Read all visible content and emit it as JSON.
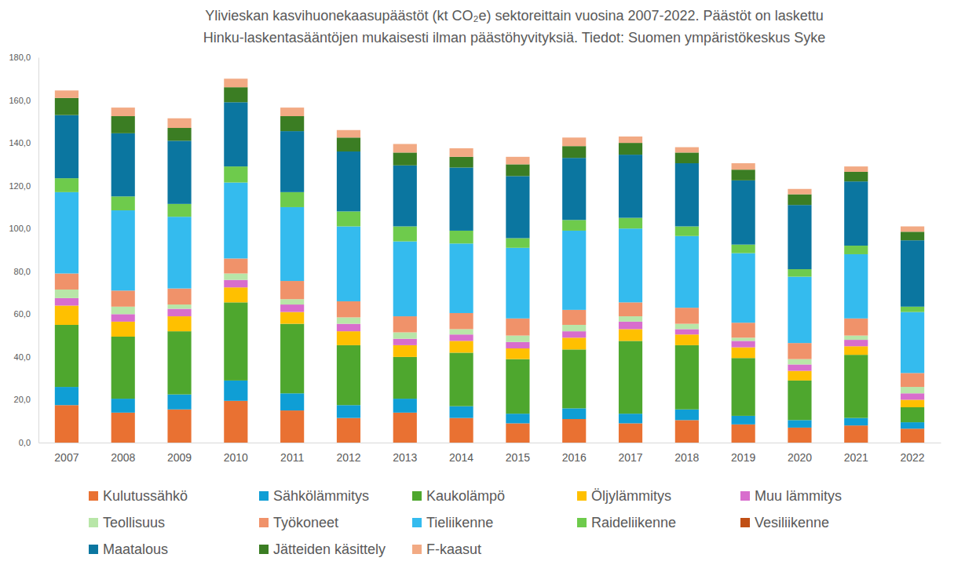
{
  "chart_data": {
    "type": "bar",
    "stacked": true,
    "grid": false,
    "legend": "bottom",
    "title": [
      "Ylivieskan kasvihuonekaasupäästöt (kt CO₂e) sektoreittain vuosina 2007-2022. Päästöt on laskettu",
      "Hinku-laskentasääntöjen mukaisesti ilman päästöhyvityksiä. Tiedot: Suomen ympäristökeskus Syke"
    ],
    "categories": [
      "2007",
      "2008",
      "2009",
      "2010",
      "2011",
      "2012",
      "2013",
      "2014",
      "2015",
      "2016",
      "2017",
      "2018",
      "2019",
      "2020",
      "2021",
      "2022"
    ],
    "ylim": [
      0,
      180
    ],
    "yticks": [
      {
        "value": 0,
        "label": "0,0"
      },
      {
        "value": 20,
        "label": "20,0"
      },
      {
        "value": 40,
        "label": "40,0"
      },
      {
        "value": 60,
        "label": "60,0"
      },
      {
        "value": 80,
        "label": "80,0"
      },
      {
        "value": 100,
        "label": "100,0"
      },
      {
        "value": 120,
        "label": "120,0"
      },
      {
        "value": 140,
        "label": "140,0"
      },
      {
        "value": 160,
        "label": "160,0"
      },
      {
        "value": 180,
        "label": "180,0"
      }
    ],
    "series": [
      {
        "name": "Kulutussähkö",
        "color": "#E97132",
        "values": [
          17.5,
          14,
          15.5,
          19.5,
          15,
          11.5,
          14,
          11.5,
          9,
          11,
          9,
          10.5,
          8.5,
          7,
          8,
          6.5
        ]
      },
      {
        "name": "Sähkölämmitys",
        "color": "#0F9ED5",
        "values": [
          8.5,
          6.5,
          7,
          9.5,
          8,
          6,
          6.5,
          5.5,
          4.5,
          5,
          4.5,
          5,
          4,
          3.5,
          3.5,
          3
        ]
      },
      {
        "name": "Kaukolämpö",
        "color": "#4EA72E",
        "values": [
          29,
          29,
          29.5,
          36.5,
          32.5,
          28,
          19.5,
          25,
          25.5,
          27.5,
          34,
          30,
          27,
          18.5,
          29.5,
          7
        ]
      },
      {
        "name": "Öljylämmitys",
        "color": "#FFC000",
        "values": [
          9,
          7,
          7,
          7,
          5.5,
          6.5,
          5.5,
          5.5,
          5,
          5.5,
          5.5,
          5,
          5,
          4.5,
          4,
          3.5
        ]
      },
      {
        "name": "Muu lämmitys",
        "color": "#D86DCD",
        "values": [
          3.5,
          3.5,
          3.5,
          3.5,
          3.5,
          3.5,
          3,
          3,
          3,
          3,
          3.5,
          2.5,
          3,
          3,
          3,
          3
        ]
      },
      {
        "name": "Teollisuus",
        "color": "#B8E6A8",
        "values": [
          4,
          3.5,
          2,
          3,
          2.5,
          3,
          3,
          2.5,
          3,
          3,
          2.5,
          2.5,
          1.5,
          2.5,
          2,
          3
        ]
      },
      {
        "name": "Työkoneet",
        "color": "#F0926A",
        "values": [
          7.5,
          7.5,
          7.5,
          7,
          8.5,
          7.5,
          7.5,
          7.5,
          8,
          7,
          6.5,
          7.5,
          7,
          7.5,
          8,
          6.5
        ]
      },
      {
        "name": "Tieliikenne",
        "color": "#34BBEE",
        "values": [
          38,
          37.5,
          33.5,
          35.5,
          34.5,
          35,
          35,
          32.5,
          33,
          37,
          34.5,
          33.5,
          32.5,
          31,
          30,
          28.5
        ]
      },
      {
        "name": "Raideliikenne",
        "color": "#6ECB4C",
        "values": [
          6.5,
          6.5,
          6,
          7.5,
          7,
          7,
          7,
          6,
          4.5,
          5,
          5,
          4.5,
          4,
          3.5,
          4,
          2.5
        ]
      },
      {
        "name": "Vesiliikenne",
        "color": "#C04F15",
        "values": [
          0,
          0,
          0,
          0,
          0,
          0,
          0,
          0,
          0,
          0,
          0,
          0,
          0,
          0,
          0,
          0
        ]
      },
      {
        "name": "Maatalous",
        "color": "#0B76A0",
        "values": [
          29.5,
          29.5,
          29.5,
          30,
          28.5,
          28,
          28.5,
          29.5,
          29,
          29,
          29.5,
          29.5,
          30,
          30,
          30,
          31
        ]
      },
      {
        "name": "Jätteiden käsittely",
        "color": "#3B7D23",
        "values": [
          8,
          8,
          6,
          7,
          7,
          6.5,
          6,
          5,
          5.5,
          5.5,
          5.5,
          5,
          5,
          5,
          4.5,
          4
        ]
      },
      {
        "name": "F-kaasut",
        "color": "#F2AA84",
        "values": [
          3.5,
          4,
          4.5,
          4,
          4,
          3.5,
          4,
          4,
          3.5,
          4,
          3,
          2.5,
          3,
          2.5,
          2.5,
          2.5
        ]
      }
    ]
  }
}
